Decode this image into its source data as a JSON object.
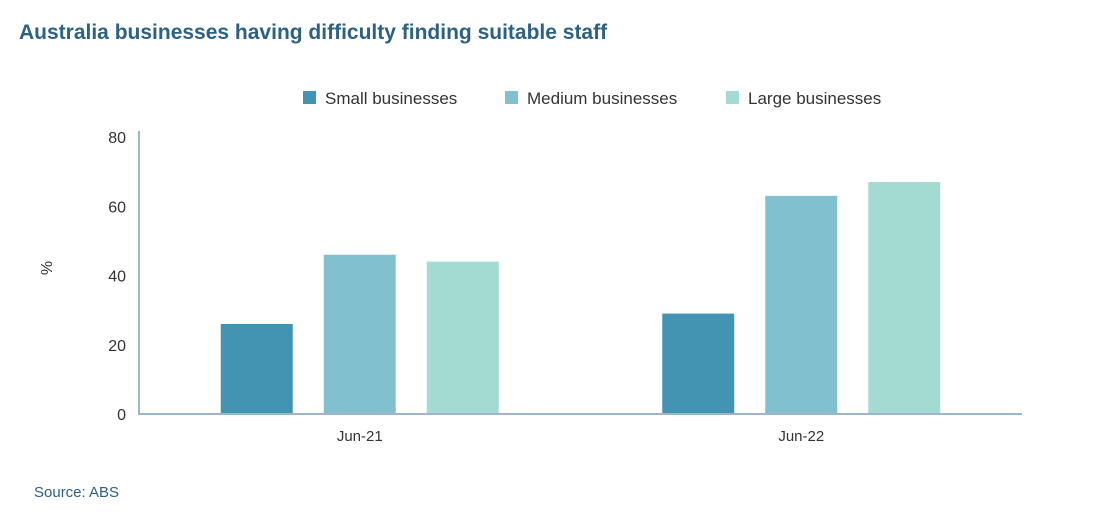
{
  "chart_data": {
    "type": "bar",
    "title": "Australia businesses having difficulty finding suitable staff",
    "categories": [
      "Jun-21",
      "Jun-22"
    ],
    "series": [
      {
        "name": "Small businesses",
        "values": [
          26,
          29
        ],
        "color": "#4393b3"
      },
      {
        "name": "Medium businesses",
        "values": [
          46,
          63
        ],
        "color": "#80c0cf"
      },
      {
        "name": "Large businesses",
        "values": [
          44,
          67
        ],
        "color": "#a3dbd3"
      }
    ],
    "xlabel": "",
    "ylabel": "%",
    "ylim": [
      0,
      80
    ],
    "yticks": [
      0,
      20,
      40,
      60,
      80
    ],
    "grid": false,
    "legend_position": "top-center",
    "source": "Source: ABS"
  }
}
